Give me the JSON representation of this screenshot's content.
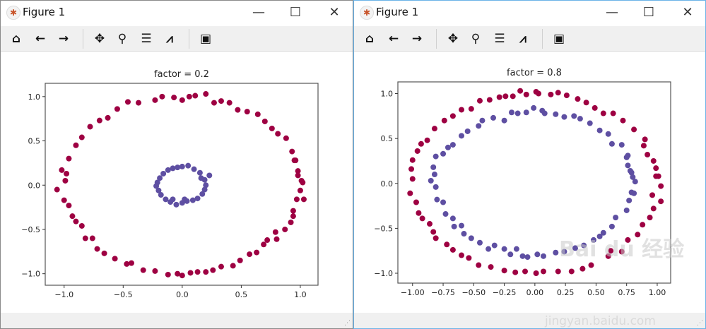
{
  "windows": [
    {
      "title": "Figure 1",
      "toolbar": [
        "home-icon",
        "back-icon",
        "forward-icon",
        "pan-icon",
        "zoom-icon",
        "configure-subplots-icon",
        "edit-axis-icon",
        "save-icon"
      ]
    },
    {
      "title": "Figure 1",
      "toolbar": [
        "home-icon",
        "back-icon",
        "forward-icon",
        "pan-icon",
        "zoom-icon",
        "configure-subplots-icon",
        "edit-axis-icon",
        "save-icon"
      ]
    }
  ],
  "watermark": {
    "logo": "Bai du 经验",
    "url": "jingyan.baidu.com"
  },
  "chart_data": [
    {
      "type": "scatter",
      "title": "factor = 0.2",
      "xlabel": "",
      "ylabel": "",
      "xlim": [
        -1.16,
        1.15
      ],
      "ylim": [
        -1.13,
        1.15
      ],
      "grid": false,
      "xticks": [
        -1.0,
        -0.5,
        0.0,
        0.5,
        1.0
      ],
      "xtick_labels": [
        "−1.0",
        "−0.5",
        "0.0",
        "0.5",
        "1.0"
      ],
      "yticks": [
        -1.0,
        -0.5,
        0.0,
        0.5,
        1.0
      ],
      "ytick_labels": [
        "−1.0",
        "−0.5",
        "0.0",
        "0.5",
        "1.0"
      ],
      "series": [
        {
          "color": "#9e0142",
          "points": [
            [
              1.02,
              0.03
            ],
            [
              0.98,
              0.16
            ],
            [
              0.95,
              0.28
            ],
            [
              0.93,
              0.38
            ],
            [
              0.88,
              0.53
            ],
            [
              0.81,
              0.58
            ],
            [
              0.76,
              0.64
            ],
            [
              0.7,
              0.72
            ],
            [
              0.64,
              0.8
            ],
            [
              0.55,
              0.83
            ],
            [
              0.47,
              0.85
            ],
            [
              0.4,
              0.93
            ],
            [
              0.33,
              0.95
            ],
            [
              0.27,
              0.93
            ],
            [
              0.2,
              1.03
            ],
            [
              0.11,
              1.01
            ],
            [
              0.06,
              1.0
            ],
            [
              0.0,
              0.96
            ],
            [
              -0.07,
              0.99
            ],
            [
              -0.17,
              1.0
            ],
            [
              -0.23,
              0.96
            ],
            [
              -0.37,
              0.93
            ],
            [
              -0.46,
              0.94
            ],
            [
              -0.55,
              0.86
            ],
            [
              -0.63,
              0.76
            ],
            [
              -0.7,
              0.73
            ],
            [
              -0.78,
              0.66
            ],
            [
              -0.85,
              0.54
            ],
            [
              -0.9,
              0.45
            ],
            [
              -0.96,
              0.3
            ],
            [
              -1.02,
              0.17
            ],
            [
              -0.98,
              0.13
            ],
            [
              -0.99,
              0.05
            ],
            [
              -1.06,
              -0.05
            ],
            [
              -1.0,
              -0.17
            ],
            [
              -0.96,
              -0.23
            ],
            [
              -0.93,
              -0.35
            ],
            [
              -0.9,
              -0.41
            ],
            [
              -0.85,
              -0.46
            ],
            [
              -0.82,
              -0.6
            ],
            [
              -0.76,
              -0.6
            ],
            [
              -0.72,
              -0.72
            ],
            [
              -0.66,
              -0.77
            ],
            [
              -0.57,
              -0.83
            ],
            [
              -0.47,
              -0.89
            ],
            [
              -0.43,
              -0.88
            ],
            [
              -0.33,
              -0.96
            ],
            [
              -0.23,
              -0.97
            ],
            [
              -0.12,
              -1.01
            ],
            [
              -0.04,
              -1.0
            ],
            [
              0.0,
              -1.02
            ],
            [
              0.07,
              -0.99
            ],
            [
              0.13,
              -0.98
            ],
            [
              0.2,
              -0.98
            ],
            [
              0.26,
              -0.96
            ],
            [
              0.33,
              -0.92
            ],
            [
              0.43,
              -0.91
            ],
            [
              0.49,
              -0.85
            ],
            [
              0.57,
              -0.78
            ],
            [
              0.63,
              -0.76
            ],
            [
              0.69,
              -0.67
            ],
            [
              0.72,
              -0.62
            ],
            [
              0.79,
              -0.53
            ],
            [
              0.8,
              -0.61
            ],
            [
              0.87,
              -0.5
            ],
            [
              0.92,
              -0.42
            ],
            [
              0.94,
              -0.35
            ],
            [
              0.94,
              -0.29
            ],
            [
              0.97,
              -0.16
            ],
            [
              1.03,
              -0.16
            ],
            [
              1.0,
              -0.06
            ],
            [
              1.01,
              0.05
            ],
            [
              0.98,
              0.11
            ],
            [
              0.96,
              0.28
            ]
          ]
        },
        {
          "color": "#5e4fa2",
          "points": [
            [
              0.2,
              0.0
            ],
            [
              0.19,
              0.06
            ],
            [
              0.23,
              0.11
            ],
            [
              0.15,
              0.14
            ],
            [
              0.1,
              0.18
            ],
            [
              0.05,
              0.22
            ],
            [
              0.0,
              0.21
            ],
            [
              -0.04,
              0.2
            ],
            [
              -0.08,
              0.19
            ],
            [
              -0.12,
              0.17
            ],
            [
              -0.16,
              0.13
            ],
            [
              -0.19,
              0.08
            ],
            [
              -0.21,
              0.03
            ],
            [
              -0.22,
              -0.01
            ],
            [
              -0.2,
              -0.06
            ],
            [
              -0.18,
              -0.11
            ],
            [
              -0.14,
              -0.16
            ],
            [
              -0.1,
              -0.19
            ],
            [
              -0.05,
              -0.22
            ],
            [
              0.0,
              -0.2
            ],
            [
              0.04,
              -0.18
            ],
            [
              0.09,
              -0.17
            ],
            [
              0.13,
              -0.15
            ],
            [
              0.17,
              -0.1
            ],
            [
              0.19,
              -0.05
            ],
            [
              -0.08,
              -0.16
            ],
            [
              0.02,
              -0.16
            ],
            [
              0.16,
              0.08
            ]
          ]
        }
      ]
    },
    {
      "type": "scatter",
      "title": "factor = 0.8",
      "xlabel": "",
      "ylabel": "",
      "xlim": [
        -1.12,
        1.11
      ],
      "ylim": [
        -1.11,
        1.13
      ],
      "grid": false,
      "xticks": [
        -1.0,
        -0.75,
        -0.5,
        -0.25,
        0.0,
        0.25,
        0.5,
        0.75,
        1.0
      ],
      "xtick_labels": [
        "−1.00",
        "−0.75",
        "−0.50",
        "−0.25",
        "0.00",
        "0.25",
        "0.50",
        "0.75",
        "1.00"
      ],
      "yticks": [
        -1.0,
        -0.5,
        0.0,
        0.5,
        1.0
      ],
      "ytick_labels": [
        "−1.0",
        "−0.5",
        "0.0",
        "0.5",
        "1.0"
      ],
      "series": [
        {
          "color": "#9e0142",
          "points": [
            [
              1.03,
              -0.03
            ],
            [
              1.01,
              0.08
            ],
            [
              0.99,
              0.17
            ],
            [
              0.97,
              0.25
            ],
            [
              0.92,
              0.32
            ],
            [
              0.89,
              0.42
            ],
            [
              0.9,
              0.49
            ],
            [
              0.81,
              0.6
            ],
            [
              0.72,
              0.7
            ],
            [
              0.64,
              0.78
            ],
            [
              0.56,
              0.78
            ],
            [
              0.49,
              0.84
            ],
            [
              0.42,
              0.9
            ],
            [
              0.35,
              0.94
            ],
            [
              0.26,
              0.98
            ],
            [
              0.19,
              1.01
            ],
            [
              0.13,
              0.99
            ],
            [
              0.03,
              1.0
            ],
            [
              0.01,
              1.02
            ],
            [
              -0.07,
              0.99
            ],
            [
              -0.12,
              1.03
            ],
            [
              -0.18,
              0.97
            ],
            [
              -0.24,
              0.97
            ],
            [
              -0.29,
              0.96
            ],
            [
              -0.37,
              0.93
            ],
            [
              -0.45,
              0.92
            ],
            [
              -0.52,
              0.83
            ],
            [
              -0.6,
              0.82
            ],
            [
              -0.67,
              0.75
            ],
            [
              -0.74,
              0.7
            ],
            [
              -0.82,
              0.61
            ],
            [
              -0.88,
              0.48
            ],
            [
              -0.93,
              0.44
            ],
            [
              -0.96,
              0.36
            ],
            [
              -1.0,
              0.26
            ],
            [
              -1.01,
              0.16
            ],
            [
              -1.0,
              0.05
            ],
            [
              -1.02,
              -0.11
            ],
            [
              -0.97,
              -0.21
            ],
            [
              -0.95,
              -0.33
            ],
            [
              -0.92,
              -0.39
            ],
            [
              -0.86,
              -0.45
            ],
            [
              -0.83,
              -0.54
            ],
            [
              -0.81,
              -0.61
            ],
            [
              -0.72,
              -0.68
            ],
            [
              -0.67,
              -0.74
            ],
            [
              -0.6,
              -0.8
            ],
            [
              -0.54,
              -0.83
            ],
            [
              -0.46,
              -0.91
            ],
            [
              -0.36,
              -0.93
            ],
            [
              -0.25,
              -0.97
            ],
            [
              -0.16,
              -0.99
            ],
            [
              -0.08,
              -0.98
            ],
            [
              0.01,
              -1.0
            ],
            [
              0.07,
              -0.98
            ],
            [
              0.19,
              -0.98
            ],
            [
              0.3,
              -0.98
            ],
            [
              0.39,
              -0.95
            ],
            [
              0.46,
              -0.91
            ],
            [
              0.6,
              -0.81
            ],
            [
              0.62,
              -0.75
            ],
            [
              0.71,
              -0.76
            ],
            [
              0.76,
              -0.63
            ],
            [
              0.84,
              -0.57
            ],
            [
              0.88,
              -0.46
            ],
            [
              0.94,
              -0.38
            ],
            [
              0.97,
              -0.28
            ],
            [
              1.03,
              -0.2
            ],
            [
              0.96,
              -0.13
            ],
            [
              0.99,
              0.08
            ]
          ]
        },
        {
          "color": "#5e4fa2",
          "points": [
            [
              0.82,
              0.02
            ],
            [
              0.79,
              0.12
            ],
            [
              0.76,
              0.2
            ],
            [
              0.75,
              0.29
            ],
            [
              0.71,
              0.43
            ],
            [
              0.63,
              0.44
            ],
            [
              0.6,
              0.55
            ],
            [
              0.53,
              0.59
            ],
            [
              0.45,
              0.67
            ],
            [
              0.37,
              0.72
            ],
            [
              0.32,
              0.75
            ],
            [
              0.24,
              0.74
            ],
            [
              0.17,
              0.77
            ],
            [
              0.08,
              0.78
            ],
            [
              0.06,
              0.81
            ],
            [
              -0.01,
              0.84
            ],
            [
              -0.07,
              0.79
            ],
            [
              -0.14,
              0.78
            ],
            [
              -0.19,
              0.79
            ],
            [
              -0.25,
              0.7
            ],
            [
              -0.34,
              0.73
            ],
            [
              -0.43,
              0.7
            ],
            [
              -0.46,
              0.64
            ],
            [
              -0.55,
              0.58
            ],
            [
              -0.6,
              0.53
            ],
            [
              -0.67,
              0.43
            ],
            [
              -0.71,
              0.4
            ],
            [
              -0.75,
              0.33
            ],
            [
              -0.81,
              0.3
            ],
            [
              -0.83,
              0.18
            ],
            [
              -0.82,
              0.1
            ],
            [
              -0.85,
              0.03
            ],
            [
              -0.81,
              -0.04
            ],
            [
              -0.8,
              -0.18
            ],
            [
              -0.75,
              -0.21
            ],
            [
              -0.73,
              -0.34
            ],
            [
              -0.67,
              -0.39
            ],
            [
              -0.66,
              -0.48
            ],
            [
              -0.6,
              -0.47
            ],
            [
              -0.58,
              -0.56
            ],
            [
              -0.52,
              -0.61
            ],
            [
              -0.45,
              -0.66
            ],
            [
              -0.38,
              -0.73
            ],
            [
              -0.33,
              -0.69
            ],
            [
              -0.25,
              -0.73
            ],
            [
              -0.2,
              -0.79
            ],
            [
              -0.15,
              -0.73
            ],
            [
              -0.1,
              -0.81
            ],
            [
              -0.06,
              -0.82
            ],
            [
              0.02,
              -0.79
            ],
            [
              0.07,
              -0.81
            ],
            [
              0.17,
              -0.77
            ],
            [
              0.24,
              -0.76
            ],
            [
              0.33,
              -0.72
            ],
            [
              0.4,
              -0.69
            ],
            [
              0.48,
              -0.63
            ],
            [
              0.53,
              -0.59
            ],
            [
              0.56,
              -0.55
            ],
            [
              0.63,
              -0.48
            ],
            [
              0.66,
              -0.38
            ],
            [
              0.75,
              -0.3
            ],
            [
              0.77,
              -0.19
            ],
            [
              0.79,
              -0.1
            ],
            [
              0.81,
              -0.11
            ],
            [
              0.8,
              0.07
            ],
            [
              0.78,
              0.14
            ],
            [
              0.76,
              0.31
            ]
          ]
        }
      ]
    }
  ]
}
